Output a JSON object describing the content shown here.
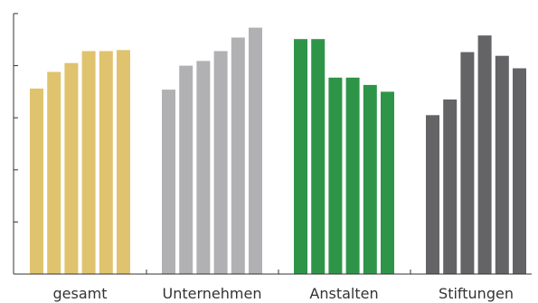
{
  "chart_data": {
    "type": "bar",
    "title": "",
    "xlabel": "",
    "ylabel": "",
    "ylim": [
      0,
      5
    ],
    "yticks": [
      0,
      1,
      2,
      3,
      4,
      5
    ],
    "show_ytick_labels": false,
    "grid": false,
    "legend": "none",
    "groups": [
      {
        "name": "gesamt",
        "color": "#e0c36e",
        "values": [
          3.56,
          3.88,
          4.05,
          4.28,
          4.28,
          4.3
        ]
      },
      {
        "name": "Unternehmen",
        "color": "#b1b1b3",
        "values": [
          3.54,
          4.0,
          4.09,
          4.28,
          4.54,
          4.73
        ]
      },
      {
        "name": "Anstalten",
        "color": "#2e9548",
        "values": [
          4.51,
          4.51,
          3.77,
          3.77,
          3.63,
          3.5
        ]
      },
      {
        "name": "Stiftungen",
        "color": "#646466",
        "values": [
          3.05,
          3.35,
          4.26,
          4.58,
          4.19,
          3.95
        ]
      }
    ]
  }
}
